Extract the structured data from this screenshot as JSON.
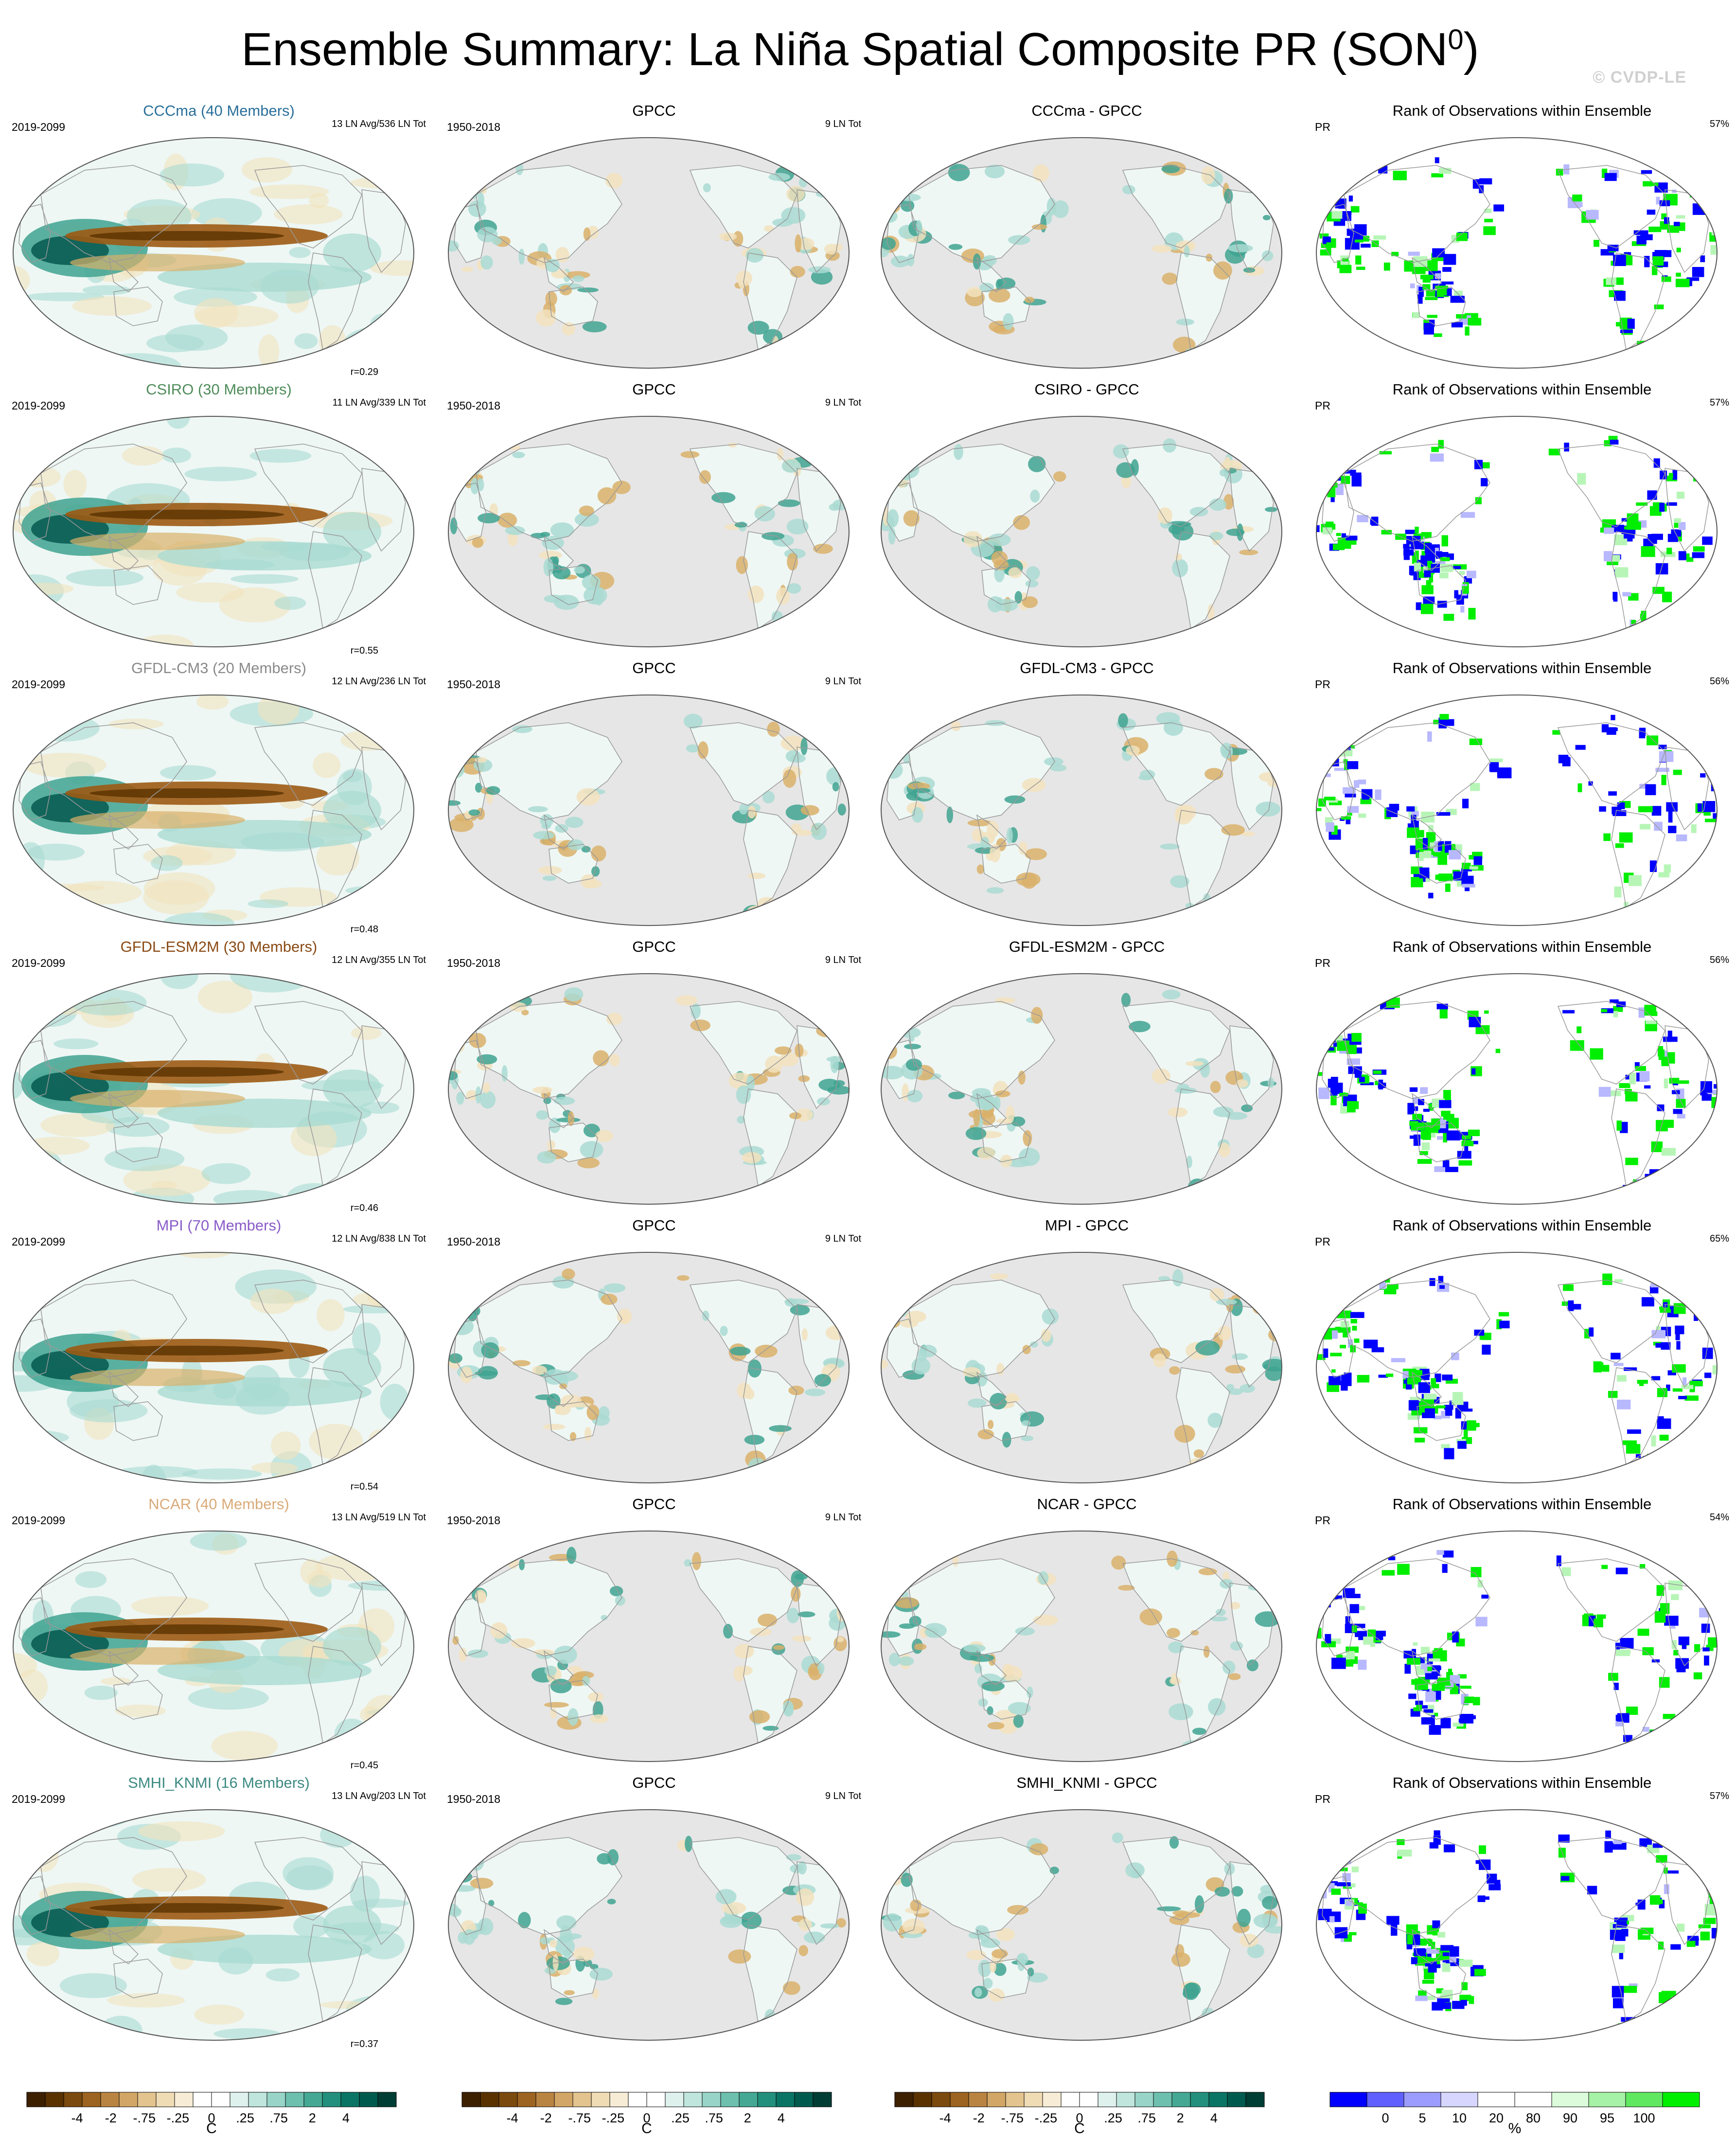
{
  "title": "Ensemble Summary: La Niña Spatial Composite PR (SON",
  "title_sup": "0",
  "title_end": ")",
  "watermark": "© CVDP-LE",
  "colors": {
    "ocean_bg": "#e6e6e6",
    "land_line": "#9a9a9a",
    "brown_dark": "#5a3200",
    "brown": "#9c5a14",
    "tan": "#d9b06a",
    "beige": "#f2e2bd",
    "pale": "#eef7f4",
    "teal_light": "#a9dbd2",
    "teal": "#3fa391",
    "teal_dark": "#00524a",
    "rank_blue": "#0000ff",
    "rank_lightblue": "#b8b8ff",
    "rank_lightgreen": "#b7f5b7",
    "rank_green": "#00ee00"
  },
  "rows": [
    {
      "model": "CCCma (40 Members)",
      "model_color": "#2a6f9a",
      "diff": "CCCma - GPCC",
      "period": "2019-2099",
      "events": "13 LN Avg/536 LN Tot",
      "r": "r=0.29",
      "obs_period": "1950-2018",
      "obs_events": "9 LN Tot",
      "obs_title": "GPCC",
      "rank_title": "Rank of Observations within Ensemble",
      "rank_var": "PR",
      "rank_pct": "57%"
    },
    {
      "model": "CSIRO (30 Members)",
      "model_color": "#4f8c5a",
      "diff": "CSIRO - GPCC",
      "period": "2019-2099",
      "events": "11 LN Avg/339 LN Tot",
      "r": "r=0.55",
      "obs_period": "1950-2018",
      "obs_events": "9 LN Tot",
      "obs_title": "GPCC",
      "rank_title": "Rank of Observations within Ensemble",
      "rank_var": "PR",
      "rank_pct": "57%"
    },
    {
      "model": "GFDL-CM3 (20 Members)",
      "model_color": "#8a8a8a",
      "diff": "GFDL-CM3 - GPCC",
      "period": "2019-2099",
      "events": "12 LN Avg/236 LN Tot",
      "r": "r=0.48",
      "obs_period": "1950-2018",
      "obs_events": "9 LN Tot",
      "obs_title": "GPCC",
      "rank_title": "Rank of Observations within Ensemble",
      "rank_var": "PR",
      "rank_pct": "56%"
    },
    {
      "model": "GFDL-ESM2M (30 Members)",
      "model_color": "#8a4a14",
      "diff": "GFDL-ESM2M - GPCC",
      "period": "2019-2099",
      "events": "12 LN Avg/355 LN Tot",
      "r": "r=0.46",
      "obs_period": "1950-2018",
      "obs_events": "9 LN Tot",
      "obs_title": "GPCC",
      "rank_title": "Rank of Observations within Ensemble",
      "rank_var": "PR",
      "rank_pct": "56%"
    },
    {
      "model": "MPI (70 Members)",
      "model_color": "#8a5cc8",
      "diff": "MPI - GPCC",
      "period": "2019-2099",
      "events": "12 LN Avg/838 LN Tot",
      "r": "r=0.54",
      "obs_period": "1950-2018",
      "obs_events": "9 LN Tot",
      "obs_title": "GPCC",
      "rank_title": "Rank of Observations within Ensemble",
      "rank_var": "PR",
      "rank_pct": "65%"
    },
    {
      "model": "NCAR (40 Members)",
      "model_color": "#d9aa78",
      "diff": "NCAR - GPCC",
      "period": "2019-2099",
      "events": "13 LN Avg/519 LN Tot",
      "r": "r=0.45",
      "obs_period": "1950-2018",
      "obs_events": "9 LN Tot",
      "obs_title": "GPCC",
      "rank_title": "Rank of Observations within Ensemble",
      "rank_var": "PR",
      "rank_pct": "54%"
    },
    {
      "model": "SMHI_KNMI (16 Members)",
      "model_color": "#3d8a82",
      "diff": "SMHI_KNMI - GPCC",
      "period": "2019-2099",
      "events": "13 LN Avg/203 LN Tot",
      "r": "r=0.37",
      "obs_period": "1950-2018",
      "obs_events": "9 LN Tot",
      "obs_title": "GPCC",
      "rank_title": "Rank of Observations within Ensemble",
      "rank_var": "PR",
      "rank_pct": "57%"
    }
  ],
  "colorbars": {
    "anomaly": {
      "labels": [
        "-4",
        "-2",
        "-.75",
        "-.25",
        "0",
        ".25",
        ".75",
        "2",
        "4"
      ],
      "unit": "C",
      "colors": [
        "#3d2000",
        "#5a3200",
        "#7a4a0e",
        "#9c6420",
        "#b98442",
        "#d2a666",
        "#e3c38e",
        "#efdcb4",
        "#f7ecd6",
        "#ffffff",
        "#ffffff",
        "#def1ed",
        "#bfe5dd",
        "#98d4c8",
        "#6dbfae",
        "#45a894",
        "#22907c",
        "#0b7565",
        "#005a4e",
        "#003d34"
      ]
    },
    "rank": {
      "labels": [
        "0",
        "5",
        "10",
        "20",
        "80",
        "90",
        "95",
        "100"
      ],
      "unit": "%",
      "colors": [
        "#0000ff",
        "#6060ff",
        "#9c9cff",
        "#d6d6ff",
        "#ffffff",
        "#ffffff",
        "#dbfbdb",
        "#a6f2a6",
        "#60e860",
        "#00ee00"
      ]
    }
  }
}
